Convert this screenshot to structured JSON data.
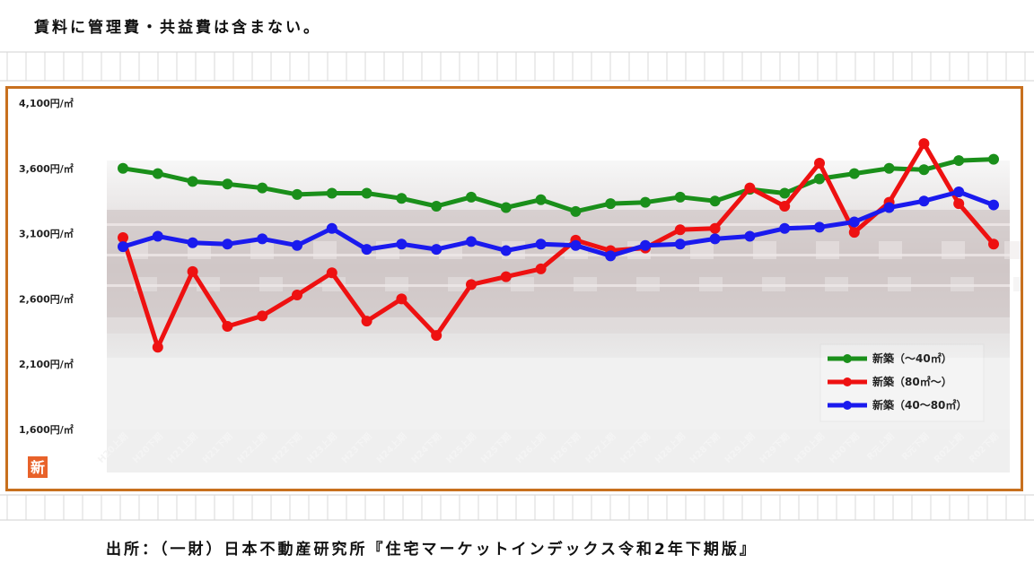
{
  "header_note": "賃料に管理費・共益費は含まない。",
  "source_note": "出所：（一財）日本不動産研究所『住宅マーケットインデックス令和2年下期版』",
  "badge": "新",
  "colors": {
    "frame": "#c8701e",
    "badge": "#e8622a",
    "series_green": "#1a8f1a",
    "series_red": "#ee1111",
    "series_blue": "#1a1aee"
  },
  "chart_data": {
    "type": "line",
    "title": "",
    "xlabel": "",
    "ylabel": "",
    "ylim": [
      1600,
      4100
    ],
    "yticks": [
      1600,
      2100,
      2600,
      3100,
      3600,
      4100
    ],
    "ytick_labels": [
      "1,600円/㎡",
      "2,100円/㎡",
      "2,600円/㎡",
      "3,100円/㎡",
      "3,600円/㎡",
      "4,100円/㎡"
    ],
    "grid": false,
    "legend_position": "bottom-right",
    "categories": [
      "H20上期",
      "H20下期",
      "H21上期",
      "H21下期",
      "H22上期",
      "H22下期",
      "H23上期",
      "H23下期",
      "H24上期",
      "H24下期",
      "H25上期",
      "H25下期",
      "H26上期",
      "H26下期",
      "H27上期",
      "H27下期",
      "H28上期",
      "H28下期",
      "H29上期",
      "H29下期",
      "H30上期",
      "H30下期",
      "R元上期",
      "R元下期",
      "R02上期",
      "R02下期"
    ],
    "series": [
      {
        "name": "新築（～40㎡）",
        "color": "#1a8f1a",
        "values": [
          3600,
          3560,
          3500,
          3480,
          3450,
          3400,
          3410,
          3410,
          3370,
          3310,
          3380,
          3300,
          3360,
          3270,
          3330,
          3340,
          3380,
          3350,
          3440,
          3410,
          3520,
          3560,
          3600,
          3590,
          3660,
          3670
        ]
      },
      {
        "name": "新築（80㎡～）",
        "color": "#ee1111",
        "values": [
          3070,
          2230,
          2810,
          2390,
          2470,
          2630,
          2800,
          2430,
          2600,
          2320,
          2710,
          2770,
          2830,
          3050,
          2970,
          2990,
          3130,
          3140,
          3450,
          3310,
          3640,
          3110,
          3340,
          3790,
          3330,
          3020
        ]
      },
      {
        "name": "新築（40～80㎡）",
        "color": "#1a1aee",
        "values": [
          3000,
          3080,
          3030,
          3020,
          3060,
          3010,
          3140,
          2980,
          3020,
          2980,
          3040,
          2970,
          3020,
          3010,
          2930,
          3010,
          3020,
          3060,
          3080,
          3140,
          3150,
          3190,
          3300,
          3350,
          3420,
          3320
        ]
      }
    ]
  }
}
